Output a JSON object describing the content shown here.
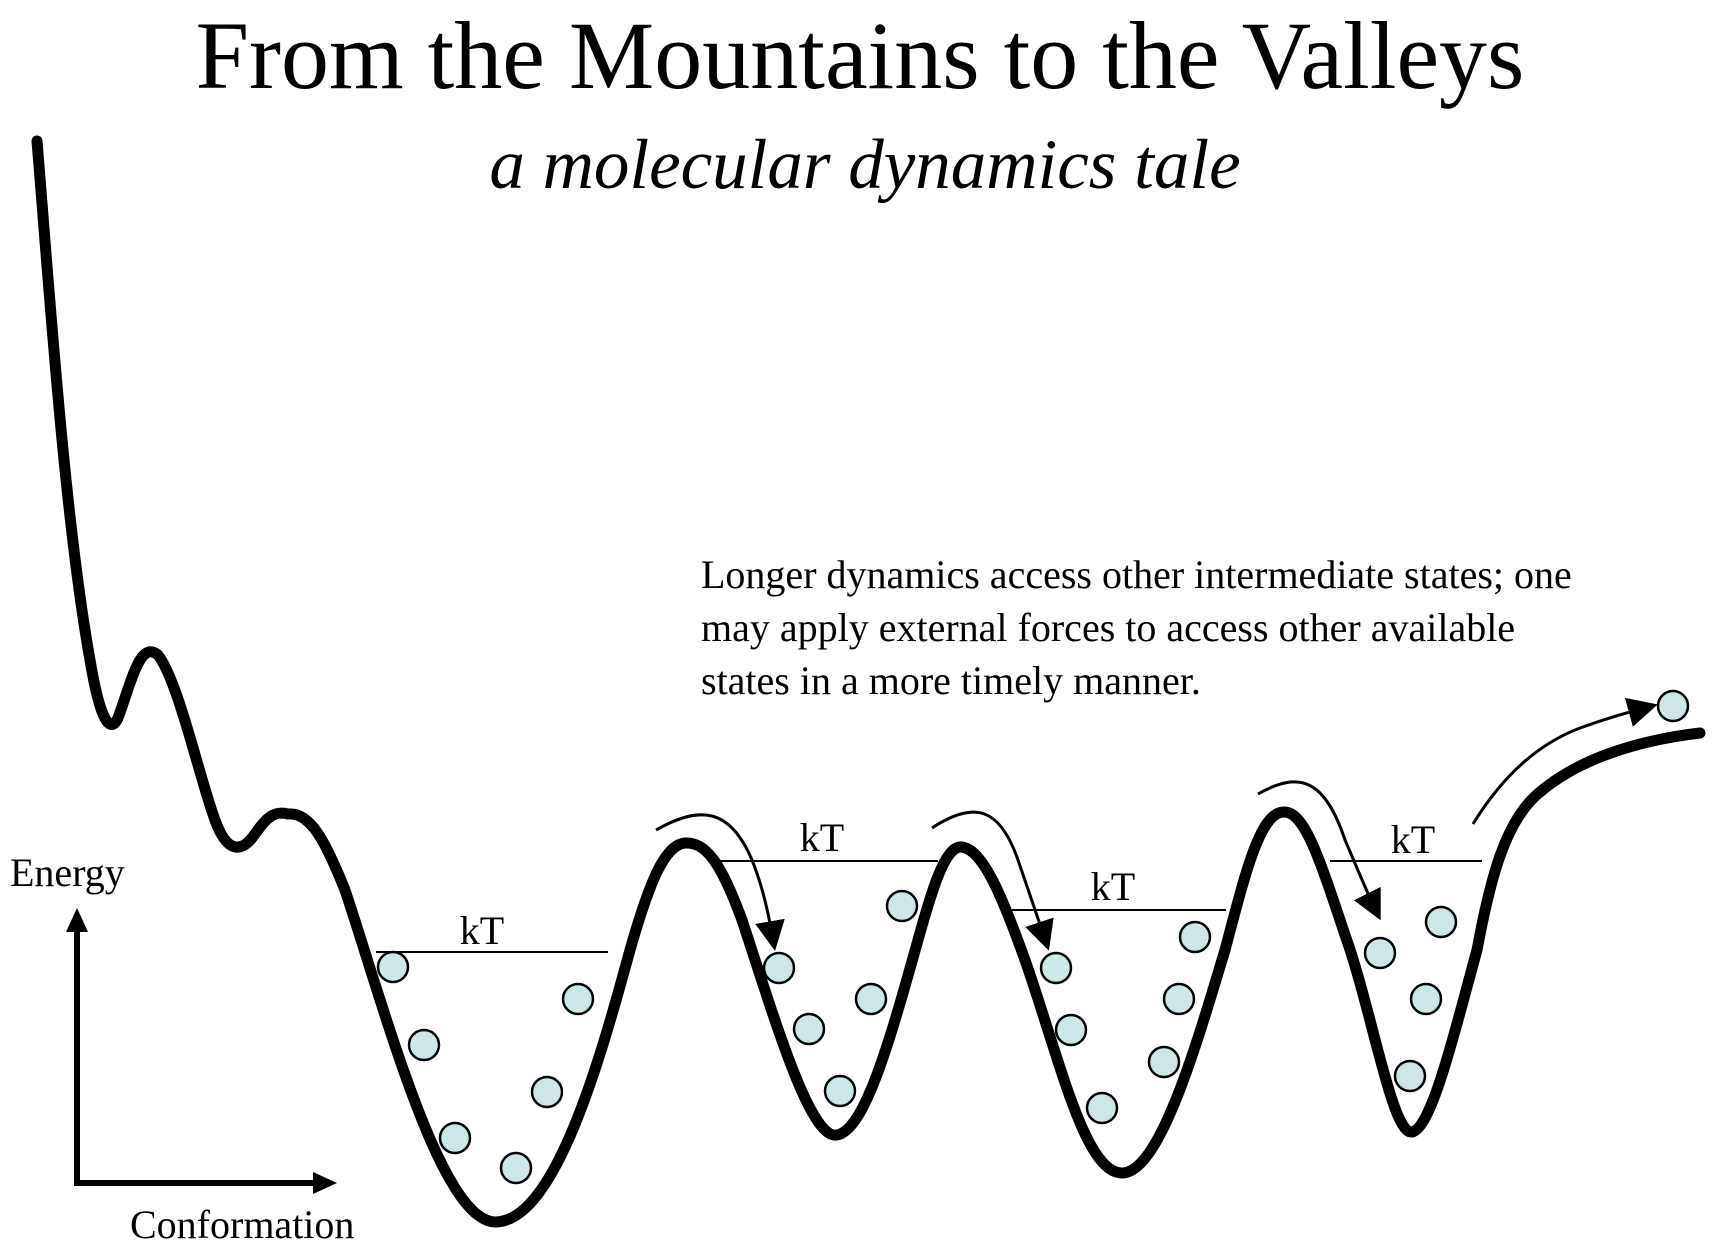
{
  "title": "From the Mountains to the Valleys",
  "subtitle": "a molecular dynamics tale",
  "note": "Longer dynamics access other intermediate states; one\nmay  apply external forces to access other available\nstates in a more timely manner.",
  "axes": {
    "y_label": "Energy",
    "x_label": "Conformation"
  },
  "wells": [
    {
      "label": "kT"
    },
    {
      "label": "kT"
    },
    {
      "label": "kT"
    },
    {
      "label": "kT"
    }
  ],
  "colors": {
    "curve": "#000000",
    "particle_fill": "#cde6e8",
    "particle_stroke": "#000000"
  }
}
